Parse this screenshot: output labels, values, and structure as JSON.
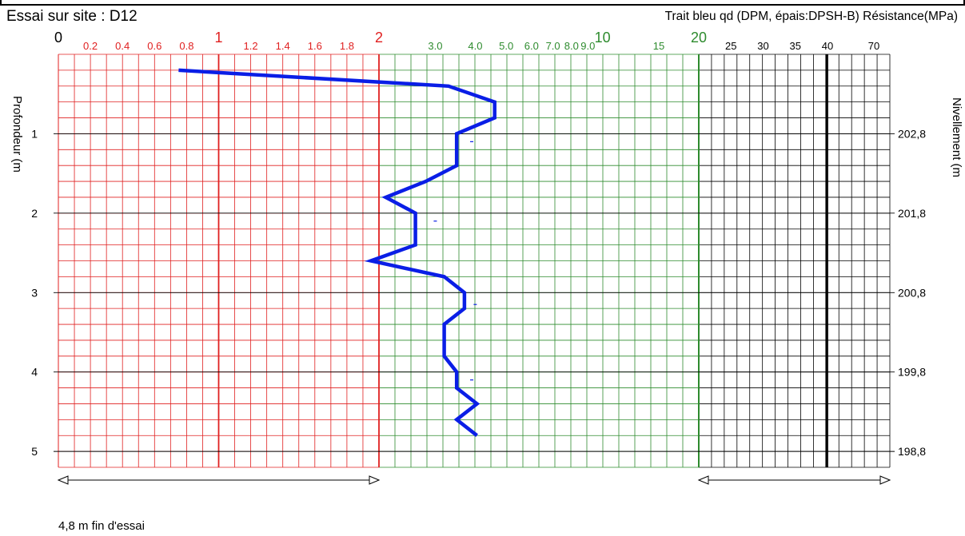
{
  "header": {
    "title": "Essai sur site :  D12",
    "legend": "Trait bleu qd (DPM, épais:DPSH-B) Résistance(MPa)"
  },
  "axes": {
    "left_label": "Profondeur   (m",
    "right_label": "Nivellement   (m"
  },
  "footer": {
    "note": "4,8 m  fin d'essai"
  },
  "colors": {
    "zone1": "#e02020",
    "zone2": "#2e8b2e",
    "zone3": "#000000",
    "curve": "#0a1ee6"
  },
  "chart_data": {
    "type": "line",
    "x_scale": "piecewise: 0-1 and 1-2 linear, 2-10 and 10-20 logarithmic, 20-40 linear, 40-70 compressed",
    "x_ticks_major": [
      {
        "label": "0",
        "value": 0,
        "zone": "red"
      },
      {
        "label": "1",
        "value": 1,
        "zone": "red"
      },
      {
        "label": "2",
        "value": 2,
        "zone": "red"
      },
      {
        "label": "10",
        "value": 10,
        "zone": "green"
      },
      {
        "label": "20",
        "value": 20,
        "zone": "green"
      }
    ],
    "x_ticks_minor": [
      {
        "label": "0.2",
        "value": 0.2,
        "zone": "red"
      },
      {
        "label": "0.4",
        "value": 0.4,
        "zone": "red"
      },
      {
        "label": "0.6",
        "value": 0.6,
        "zone": "red"
      },
      {
        "label": "0.8",
        "value": 0.8,
        "zone": "red"
      },
      {
        "label": "1.2",
        "value": 1.2,
        "zone": "red"
      },
      {
        "label": "1.4",
        "value": 1.4,
        "zone": "red"
      },
      {
        "label": "1.6",
        "value": 1.6,
        "zone": "red"
      },
      {
        "label": "1.8",
        "value": 1.8,
        "zone": "red"
      },
      {
        "label": "3.0",
        "value": 3,
        "zone": "green"
      },
      {
        "label": "4.0",
        "value": 4,
        "zone": "green"
      },
      {
        "label": "5.0",
        "value": 5,
        "zone": "green"
      },
      {
        "label": "6.0",
        "value": 6,
        "zone": "green"
      },
      {
        "label": "7.0",
        "value": 7,
        "zone": "green"
      },
      {
        "label": "8.0",
        "value": 8,
        "zone": "green"
      },
      {
        "label": "9.0",
        "value": 9,
        "zone": "green"
      },
      {
        "label": "15",
        "value": 15,
        "zone": "green"
      },
      {
        "label": "25",
        "value": 25,
        "zone": "black"
      },
      {
        "label": "30",
        "value": 30,
        "zone": "black"
      },
      {
        "label": "35",
        "value": 35,
        "zone": "black"
      },
      {
        "label": "40",
        "value": 40,
        "zone": "black"
      },
      {
        "label": "70",
        "value": 70,
        "zone": "black"
      }
    ],
    "y_ticks_left": [
      "1",
      "2",
      "3",
      "4",
      "5"
    ],
    "y_ticks_right": [
      "202,8",
      "201,8",
      "200,8",
      "199,8",
      "198,8"
    ],
    "y_range": [
      0,
      5.2
    ],
    "series": [
      {
        "points": [
          {
            "depth": 0.2,
            "qd": 0.75
          },
          {
            "depth": 0.4,
            "qd": 3.3
          },
          {
            "depth": 0.6,
            "qd": 4.6
          },
          {
            "depth": 0.8,
            "qd": 4.6
          },
          {
            "depth": 1.0,
            "qd": 3.5
          },
          {
            "depth": 1.2,
            "qd": 3.5
          },
          {
            "depth": 1.4,
            "qd": 3.5
          },
          {
            "depth": 1.6,
            "qd": 2.8
          },
          {
            "depth": 1.8,
            "qd": 2.1
          },
          {
            "depth": 2.0,
            "qd": 2.6
          },
          {
            "depth": 2.2,
            "qd": 2.6
          },
          {
            "depth": 2.4,
            "qd": 2.6
          },
          {
            "depth": 2.6,
            "qd": 1.95
          },
          {
            "depth": 2.8,
            "qd": 3.2
          },
          {
            "depth": 3.0,
            "qd": 3.7
          },
          {
            "depth": 3.2,
            "qd": 3.7
          },
          {
            "depth": 3.4,
            "qd": 3.2
          },
          {
            "depth": 3.6,
            "qd": 3.2
          },
          {
            "depth": 3.8,
            "qd": 3.2
          },
          {
            "depth": 4.0,
            "qd": 3.5
          },
          {
            "depth": 4.2,
            "qd": 3.5
          },
          {
            "depth": 4.4,
            "qd": 4.05
          },
          {
            "depth": 4.6,
            "qd": 3.5
          },
          {
            "depth": 4.8,
            "qd": 4.05
          }
        ]
      }
    ],
    "dash_markers": [
      {
        "depth": 1.1,
        "qd": 3.9
      },
      {
        "depth": 2.1,
        "qd": 3.0
      },
      {
        "depth": 3.15,
        "qd": 4.0
      },
      {
        "depth": 4.1,
        "qd": 3.9
      }
    ],
    "range_arrows": [
      {
        "from": 0,
        "to": 2,
        "zone": "red"
      },
      {
        "from": 20,
        "to": 70,
        "zone": "black"
      }
    ]
  }
}
